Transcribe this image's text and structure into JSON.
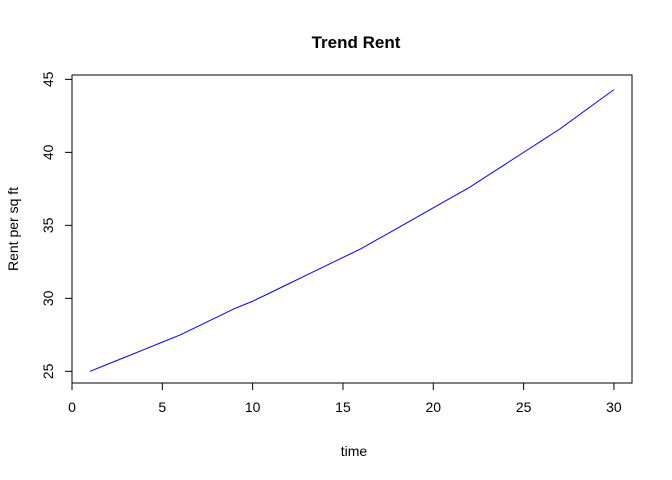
{
  "chart_data": {
    "type": "line",
    "title": "Trend Rent",
    "xlabel": "time",
    "ylabel": "Rent per sq ft",
    "xlim": [
      0,
      31
    ],
    "ylim": [
      24.2,
      45.3
    ],
    "xticks": [
      0,
      5,
      10,
      15,
      20,
      25,
      30
    ],
    "yticks": [
      25,
      30,
      35,
      40,
      45
    ],
    "grid": false,
    "line_color": "#0000ff",
    "series": [
      {
        "x": [
          1,
          2,
          3,
          4,
          5,
          6,
          7,
          8,
          9,
          10,
          11,
          12,
          13,
          14,
          15,
          16,
          17,
          18,
          19,
          20,
          21,
          22,
          23,
          24,
          25,
          26,
          27,
          28,
          29,
          30
        ],
        "values": [
          25.0,
          25.5,
          26.0,
          26.5,
          27.0,
          27.5,
          28.1,
          28.7,
          29.3,
          29.8,
          30.4,
          31.0,
          31.6,
          32.2,
          32.8,
          33.4,
          34.1,
          34.8,
          35.5,
          36.2,
          36.9,
          37.6,
          38.4,
          39.2,
          40.0,
          40.8,
          41.6,
          42.5,
          43.4,
          44.3
        ]
      }
    ]
  }
}
